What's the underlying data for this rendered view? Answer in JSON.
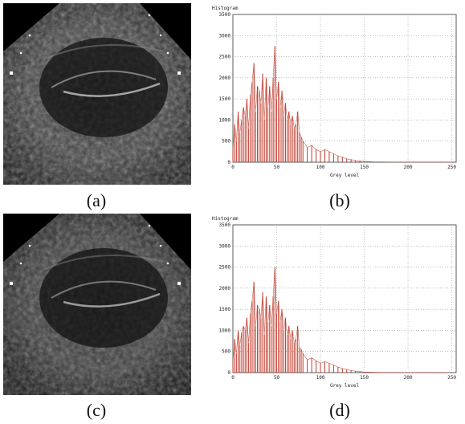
{
  "captions": [
    "(a)",
    "(b)",
    "(c)",
    "(d)"
  ],
  "chart_data": [
    {
      "type": "bar",
      "title": "Histogram",
      "xlabel": "Grey level",
      "ylabel": "",
      "xlim": [
        0,
        255
      ],
      "ylim": [
        0,
        3500
      ],
      "xticks": [
        0,
        50,
        100,
        150,
        200,
        250
      ],
      "yticks": [
        0,
        500,
        1000,
        1500,
        2000,
        2500,
        3000,
        3500
      ],
      "grid": true,
      "color": "#c0392b",
      "x": [
        0,
        2,
        4,
        6,
        8,
        10,
        12,
        14,
        16,
        18,
        20,
        22,
        24,
        26,
        28,
        30,
        32,
        34,
        36,
        38,
        40,
        42,
        44,
        46,
        48,
        50,
        52,
        54,
        56,
        58,
        60,
        62,
        64,
        66,
        68,
        70,
        72,
        74,
        76,
        78,
        80,
        85,
        90,
        95,
        100,
        105,
        110,
        115,
        120,
        125,
        130,
        135,
        140,
        145,
        150,
        160,
        170,
        180,
        200,
        220,
        250
      ],
      "values": [
        300,
        900,
        500,
        1200,
        700,
        1000,
        1300,
        1100,
        1500,
        800,
        1600,
        1900,
        2350,
        1200,
        1800,
        1700,
        1400,
        2100,
        1000,
        2000,
        1300,
        1800,
        1200,
        2000,
        2750,
        1500,
        1900,
        1300,
        1700,
        1100,
        1400,
        1000,
        1200,
        900,
        1100,
        800,
        900,
        1200,
        700,
        600,
        500,
        350,
        400,
        300,
        250,
        300,
        250,
        200,
        150,
        120,
        80,
        60,
        40,
        30,
        20,
        10,
        5,
        3,
        2,
        1,
        0
      ]
    },
    {
      "type": "bar",
      "title": "Histogram",
      "xlabel": "Grey level",
      "ylabel": "",
      "xlim": [
        0,
        255
      ],
      "ylim": [
        0,
        3500
      ],
      "xticks": [
        0,
        50,
        100,
        150,
        200,
        250
      ],
      "yticks": [
        0,
        500,
        1000,
        1500,
        2000,
        2500,
        3000,
        3500
      ],
      "grid": true,
      "color": "#c0392b",
      "x": [
        0,
        2,
        4,
        6,
        8,
        10,
        12,
        14,
        16,
        18,
        20,
        22,
        24,
        26,
        28,
        30,
        32,
        34,
        36,
        38,
        40,
        42,
        44,
        46,
        48,
        50,
        52,
        54,
        56,
        58,
        60,
        62,
        64,
        66,
        68,
        70,
        72,
        74,
        76,
        78,
        80,
        85,
        90,
        95,
        100,
        105,
        110,
        115,
        120,
        125,
        130,
        135,
        140,
        145,
        150,
        160,
        170,
        180,
        200,
        220,
        250
      ],
      "values": [
        250,
        800,
        450,
        1000,
        650,
        950,
        1100,
        1000,
        1300,
        700,
        1400,
        1700,
        2150,
        1100,
        1600,
        1500,
        1300,
        1900,
        900,
        1800,
        1200,
        1600,
        1100,
        1800,
        2500,
        1400,
        1700,
        1200,
        1500,
        1000,
        1300,
        900,
        1100,
        800,
        1000,
        700,
        800,
        1100,
        600,
        550,
        450,
        300,
        350,
        280,
        220,
        260,
        220,
        180,
        130,
        100,
        70,
        50,
        35,
        25,
        15,
        8,
        4,
        2,
        1,
        1,
        0
      ]
    }
  ]
}
